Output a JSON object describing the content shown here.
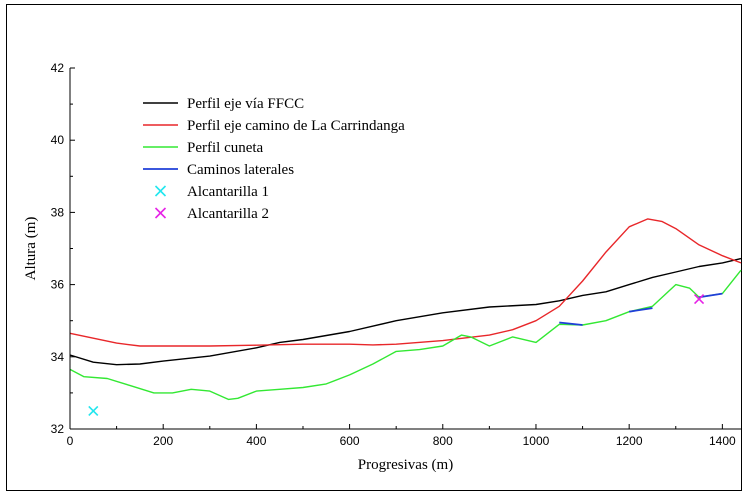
{
  "chart_data": {
    "type": "line",
    "title": "",
    "xlabel": "Progresivas (m)",
    "ylabel": "Altura (m)",
    "xlim": [
      0,
      1440
    ],
    "ylim": [
      32,
      42
    ],
    "x_ticks": [
      0,
      200,
      400,
      600,
      800,
      1000,
      1200,
      1400
    ],
    "y_ticks": [
      32,
      34,
      36,
      38,
      40,
      42
    ],
    "grid": false,
    "legend_position": "top-left",
    "series": [
      {
        "name": "Perfil eje vía FFCC",
        "kind": "line",
        "color": "#000000",
        "points": [
          [
            0,
            34.05
          ],
          [
            50,
            33.85
          ],
          [
            100,
            33.78
          ],
          [
            150,
            33.8
          ],
          [
            200,
            33.88
          ],
          [
            300,
            34.02
          ],
          [
            400,
            34.25
          ],
          [
            450,
            34.4
          ],
          [
            500,
            34.48
          ],
          [
            600,
            34.7
          ],
          [
            700,
            35.0
          ],
          [
            800,
            35.22
          ],
          [
            900,
            35.38
          ],
          [
            1000,
            35.45
          ],
          [
            1050,
            35.55
          ],
          [
            1100,
            35.7
          ],
          [
            1150,
            35.8
          ],
          [
            1200,
            36.0
          ],
          [
            1250,
            36.2
          ],
          [
            1300,
            36.35
          ],
          [
            1350,
            36.5
          ],
          [
            1400,
            36.6
          ],
          [
            1440,
            36.72
          ]
        ]
      },
      {
        "name": "Perfil eje camino de La Carrindanga",
        "kind": "line",
        "color": "#e8272a",
        "points": [
          [
            0,
            34.65
          ],
          [
            100,
            34.38
          ],
          [
            150,
            34.3
          ],
          [
            200,
            34.3
          ],
          [
            300,
            34.3
          ],
          [
            400,
            34.32
          ],
          [
            500,
            34.35
          ],
          [
            600,
            34.35
          ],
          [
            650,
            34.33
          ],
          [
            700,
            34.35
          ],
          [
            800,
            34.45
          ],
          [
            900,
            34.6
          ],
          [
            950,
            34.75
          ],
          [
            1000,
            35.0
          ],
          [
            1050,
            35.4
          ],
          [
            1100,
            36.1
          ],
          [
            1150,
            36.9
          ],
          [
            1200,
            37.6
          ],
          [
            1240,
            37.82
          ],
          [
            1270,
            37.75
          ],
          [
            1300,
            37.55
          ],
          [
            1350,
            37.1
          ],
          [
            1400,
            36.8
          ],
          [
            1440,
            36.6
          ]
        ]
      },
      {
        "name": "Perfil cuneta",
        "kind": "line",
        "color": "#33e833",
        "points": [
          [
            0,
            33.65
          ],
          [
            30,
            33.45
          ],
          [
            80,
            33.4
          ],
          [
            130,
            33.2
          ],
          [
            180,
            33.0
          ],
          [
            220,
            33.0
          ],
          [
            260,
            33.1
          ],
          [
            300,
            33.05
          ],
          [
            340,
            32.82
          ],
          [
            360,
            32.85
          ],
          [
            400,
            33.05
          ],
          [
            450,
            33.1
          ],
          [
            500,
            33.15
          ],
          [
            550,
            33.25
          ],
          [
            600,
            33.5
          ],
          [
            650,
            33.8
          ],
          [
            700,
            34.15
          ],
          [
            750,
            34.2
          ],
          [
            800,
            34.3
          ],
          [
            840,
            34.6
          ],
          [
            860,
            34.55
          ],
          [
            900,
            34.3
          ],
          [
            950,
            34.55
          ],
          [
            1000,
            34.4
          ],
          [
            1050,
            34.9
          ],
          [
            1100,
            34.88
          ],
          [
            1150,
            35.0
          ],
          [
            1200,
            35.25
          ],
          [
            1250,
            35.4
          ],
          [
            1300,
            36.0
          ],
          [
            1330,
            35.9
          ],
          [
            1350,
            35.65
          ],
          [
            1400,
            35.75
          ],
          [
            1440,
            36.4
          ]
        ]
      },
      {
        "name": "Caminos laterales",
        "kind": "segments",
        "color": "#1f3fd8",
        "segments": [
          [
            [
              1050,
              34.95
            ],
            [
              1100,
              34.88
            ]
          ],
          [
            [
              1200,
              35.25
            ],
            [
              1250,
              35.35
            ]
          ],
          [
            [
              1350,
              35.65
            ],
            [
              1400,
              35.75
            ]
          ]
        ]
      },
      {
        "name": "Alcantarilla 1",
        "kind": "marker",
        "color": "#22e6ee",
        "points": [
          [
            50,
            32.5
          ]
        ]
      },
      {
        "name": "Alcantarilla 2",
        "kind": "marker",
        "color": "#e622e6",
        "points": [
          [
            1350,
            35.6
          ]
        ]
      }
    ]
  }
}
